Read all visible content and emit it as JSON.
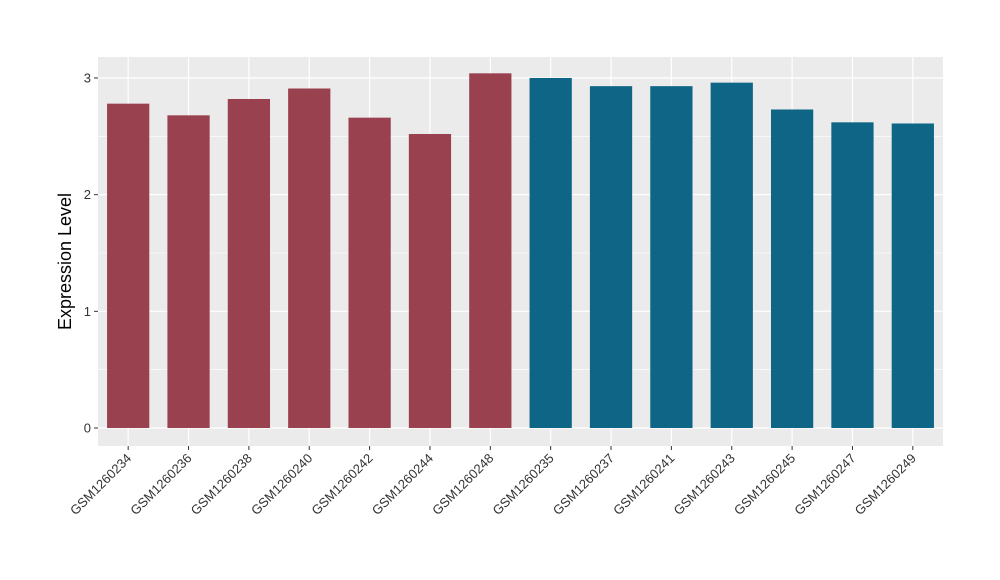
{
  "chart_data": {
    "type": "bar",
    "title": "",
    "xlabel": "",
    "ylabel": "Expression Level",
    "ylim": [
      0,
      3.15
    ],
    "yticks": [
      "0",
      "1",
      "2",
      "3"
    ],
    "grid": true,
    "background": "#EBEBEB",
    "colors": {
      "group1": "#9A4150",
      "group2": "#0E6585",
      "grid": "#FFFFFF"
    },
    "categories": [
      "GSM1260234",
      "GSM1260236",
      "GSM1260238",
      "GSM1260240",
      "GSM1260242",
      "GSM1260244",
      "GSM1260248",
      "GSM1260235",
      "GSM1260237",
      "GSM1260241",
      "GSM1260243",
      "GSM1260245",
      "GSM1260247",
      "GSM1260249"
    ],
    "values": [
      2.78,
      2.68,
      2.82,
      2.91,
      2.66,
      2.52,
      3.04,
      3.0,
      2.93,
      2.93,
      2.96,
      2.73,
      2.62,
      2.61
    ],
    "groups": [
      "group1",
      "group1",
      "group1",
      "group1",
      "group1",
      "group1",
      "group1",
      "group2",
      "group2",
      "group2",
      "group2",
      "group2",
      "group2",
      "group2"
    ]
  }
}
